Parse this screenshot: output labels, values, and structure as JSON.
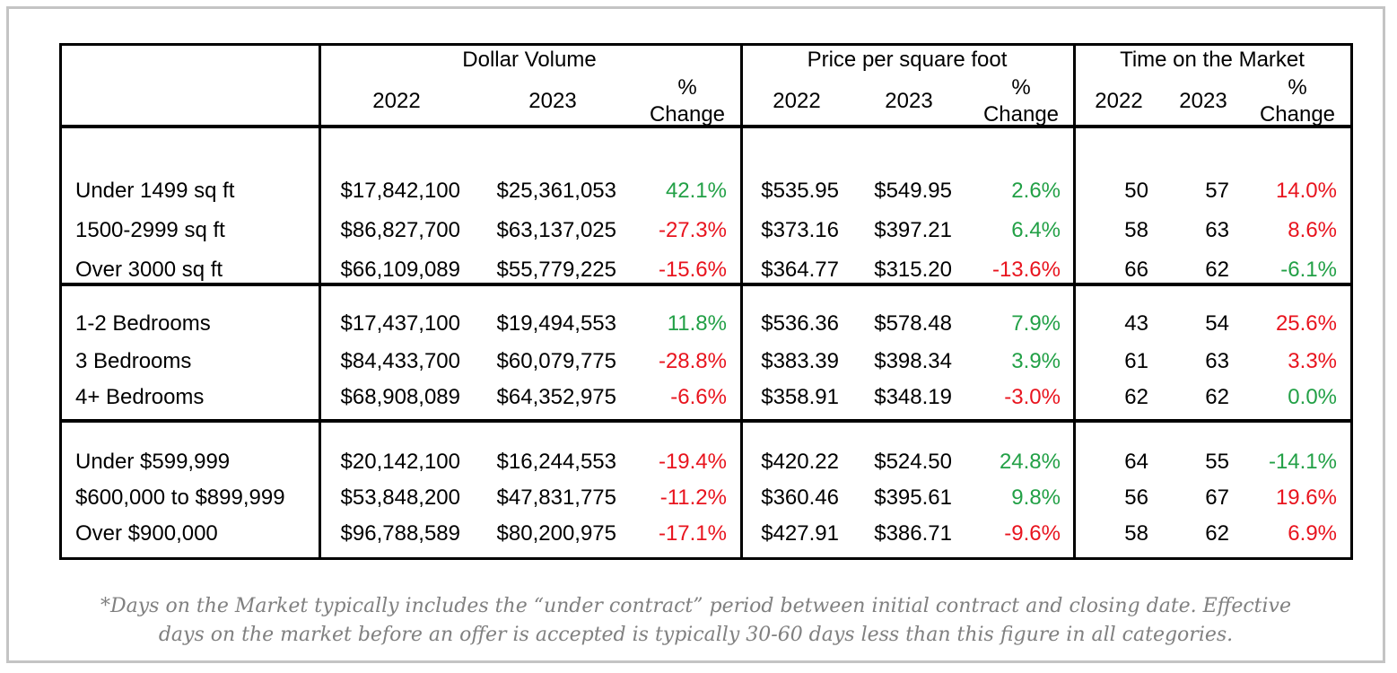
{
  "header": {
    "groups": [
      "Dollar Volume",
      "Price per square foot",
      "Time on the Market"
    ],
    "year1": "2022",
    "year2": "2023",
    "pct": "%",
    "change": "Change"
  },
  "sections": [
    {
      "rows": [
        {
          "label": "Under 1499 sq ft",
          "dv22": "$17,842,100",
          "dv23": "$25,361,053",
          "dvpct": "42.1%",
          "dvdir": "pos",
          "pp22": "$535.95",
          "pp23": "$549.95",
          "pppct": "2.6%",
          "ppdir": "pos",
          "tm22": "50",
          "tm23": "57",
          "tmpct": "14.0%",
          "tmdir": "neg"
        },
        {
          "label": "1500-2999 sq ft",
          "dv22": "$86,827,700",
          "dv23": "$63,137,025",
          "dvpct": "-27.3%",
          "dvdir": "neg",
          "pp22": "$373.16",
          "pp23": "$397.21",
          "pppct": "6.4%",
          "ppdir": "pos",
          "tm22": "58",
          "tm23": "63",
          "tmpct": "8.6%",
          "tmdir": "neg"
        },
        {
          "label": "Over 3000 sq ft",
          "dv22": "$66,109,089",
          "dv23": "$55,779,225",
          "dvpct": "-15.6%",
          "dvdir": "neg",
          "pp22": "$364.77",
          "pp23": "$315.20",
          "pppct": "-13.6%",
          "ppdir": "neg",
          "tm22": "66",
          "tm23": "62",
          "tmpct": "-6.1%",
          "tmdir": "pos"
        }
      ]
    },
    {
      "rows": [
        {
          "label": "1-2 Bedrooms",
          "dv22": "$17,437,100",
          "dv23": "$19,494,553",
          "dvpct": "11.8%",
          "dvdir": "pos",
          "pp22": "$536.36",
          "pp23": "$578.48",
          "pppct": "7.9%",
          "ppdir": "pos",
          "tm22": "43",
          "tm23": "54",
          "tmpct": "25.6%",
          "tmdir": "neg"
        },
        {
          "label": "3 Bedrooms",
          "dv22": "$84,433,700",
          "dv23": "$60,079,775",
          "dvpct": "-28.8%",
          "dvdir": "neg",
          "pp22": "$383.39",
          "pp23": "$398.34",
          "pppct": "3.9%",
          "ppdir": "pos",
          "tm22": "61",
          "tm23": "63",
          "tmpct": "3.3%",
          "tmdir": "neg"
        },
        {
          "label": "4+ Bedrooms",
          "dv22": "$68,908,089",
          "dv23": "$64,352,975",
          "dvpct": "-6.6%",
          "dvdir": "neg",
          "pp22": "$358.91",
          "pp23": "$348.19",
          "pppct": "-3.0%",
          "ppdir": "neg",
          "tm22": "62",
          "tm23": "62",
          "tmpct": "0.0%",
          "tmdir": "pos"
        }
      ]
    },
    {
      "rows": [
        {
          "label": "Under $599,999",
          "dv22": "$20,142,100",
          "dv23": "$16,244,553",
          "dvpct": "-19.4%",
          "dvdir": "neg",
          "pp22": "$420.22",
          "pp23": "$524.50",
          "pppct": "24.8%",
          "ppdir": "pos",
          "tm22": "64",
          "tm23": "55",
          "tmpct": "-14.1%",
          "tmdir": "pos"
        },
        {
          "label": "$600,000 to $899,999",
          "dv22": "$53,848,200",
          "dv23": "$47,831,775",
          "dvpct": "-11.2%",
          "dvdir": "neg",
          "pp22": "$360.46",
          "pp23": "$395.61",
          "pppct": "9.8%",
          "ppdir": "pos",
          "tm22": "56",
          "tm23": "67",
          "tmpct": "19.6%",
          "tmdir": "neg"
        },
        {
          "label": "Over $900,000",
          "dv22": "$96,788,589",
          "dv23": "$80,200,975",
          "dvpct": "-17.1%",
          "dvdir": "neg",
          "pp22": "$427.91",
          "pp23": "$386.71",
          "pppct": "-9.6%",
          "ppdir": "neg",
          "tm22": "58",
          "tm23": "62",
          "tmpct": "6.9%",
          "tmdir": "neg"
        }
      ]
    }
  ],
  "colors": {
    "positive": "#22a046",
    "negative": "#e8141e",
    "border": "#000000",
    "frame": "#c4c4c4",
    "note": "#808080"
  },
  "footnote": {
    "line1": "*Days on the Market typically includes the “under contract” period between initial contract and closing date. Effective",
    "line2": "days on the market before an offer is accepted is typically 30-60 days less than this figure in all categories."
  }
}
